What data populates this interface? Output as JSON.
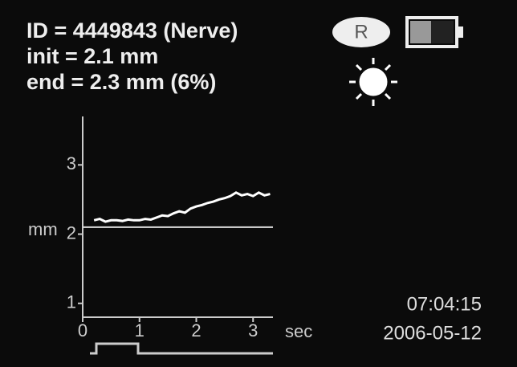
{
  "header": {
    "id_line": "ID = 4449843 (Nerve)",
    "side_badge": "R",
    "init_line": "init = 2.1 mm",
    "end_line": "end = 2.3 mm (6%)"
  },
  "footer": {
    "time": "07:04:15",
    "date": "2006-05-12"
  },
  "chart_data": {
    "type": "line",
    "y_label": "mm",
    "x_label": "sec",
    "x": [
      0.2,
      0.3,
      0.4,
      0.5,
      0.6,
      0.7,
      0.8,
      0.9,
      1.0,
      1.1,
      1.2,
      1.3,
      1.4,
      1.5,
      1.6,
      1.7,
      1.8,
      1.9,
      2.0,
      2.1,
      2.2,
      2.3,
      2.4,
      2.5,
      2.6,
      2.7,
      2.8,
      2.9,
      3.0,
      3.1,
      3.2,
      3.3
    ],
    "values": [
      2.2,
      2.22,
      2.18,
      2.2,
      2.2,
      2.19,
      2.21,
      2.2,
      2.2,
      2.22,
      2.21,
      2.24,
      2.27,
      2.26,
      2.3,
      2.33,
      2.31,
      2.37,
      2.4,
      2.42,
      2.45,
      2.47,
      2.5,
      2.52,
      2.55,
      2.6,
      2.56,
      2.58,
      2.55,
      2.6,
      2.56,
      2.58
    ],
    "color": "#ffffff",
    "reference_line": 2.1,
    "xlim": [
      0,
      3.35
    ],
    "ylim": [
      0.8,
      3.7
    ],
    "xticks": [
      0,
      1,
      2,
      3
    ],
    "yticks": [
      1,
      2,
      3
    ]
  }
}
